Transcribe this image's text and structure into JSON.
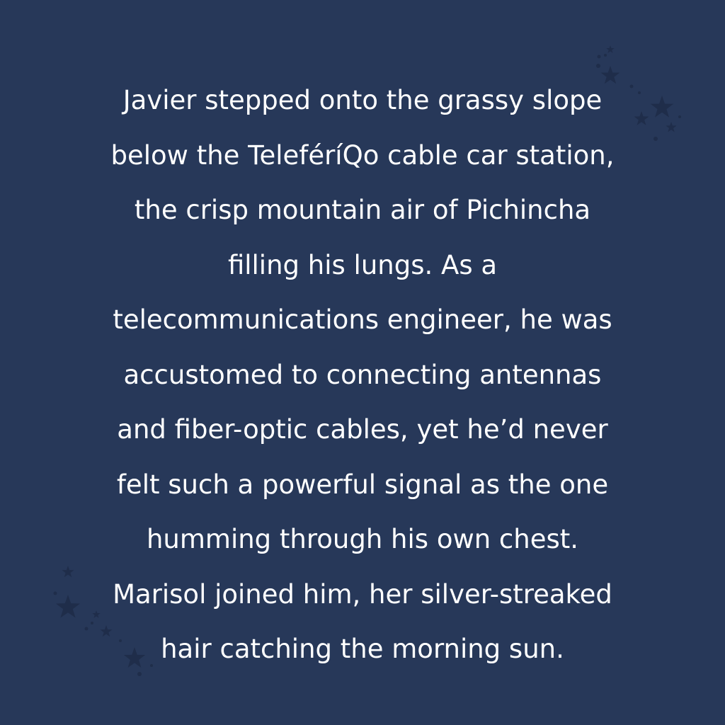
{
  "background_color": "#273859",
  "text_color": "#ffffff",
  "star_color": "#1f2d4a",
  "story_lines": [
    "Javier stepped onto the grassy slope",
    "below the TeleféríQo cable car station,",
    "the crisp mountain air of Pichincha",
    "filling his lungs. As a",
    "telecommunications engineer, he was",
    "accustomed to connecting antennas",
    "and fiber-optic cables, yet he’d never",
    "felt such a powerful signal as the one",
    "humming through his own chest.",
    "Marisol joined him, her silver-streaked",
    "hair catching the morning sun."
  ],
  "decorations": [
    "star-icon-cluster-top-right",
    "star-icon-cluster-bottom-left"
  ]
}
